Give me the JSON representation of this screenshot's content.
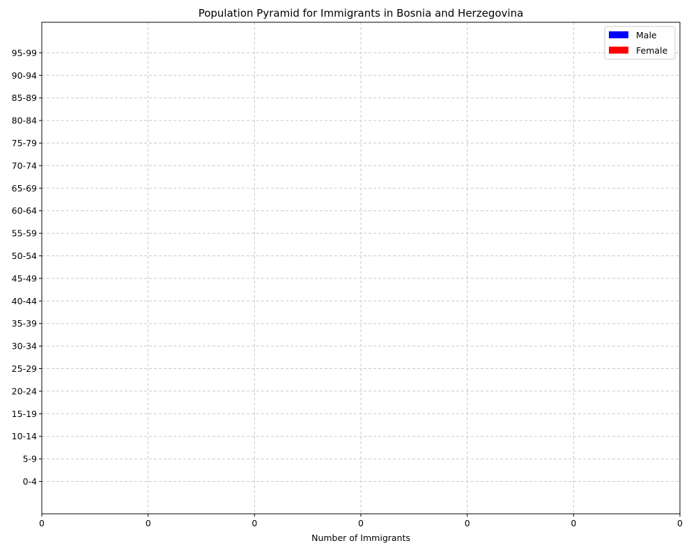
{
  "chart_data": {
    "type": "bar",
    "orientation": "horizontal",
    "title": "Population Pyramid for Immigrants in Bosnia and Herzegovina",
    "xlabel": "Number of Immigrants",
    "ylabel": "",
    "categories": [
      "0-4",
      "5-9",
      "10-14",
      "15-19",
      "20-24",
      "25-29",
      "30-34",
      "35-39",
      "40-44",
      "45-49",
      "50-54",
      "55-59",
      "60-64",
      "65-69",
      "70-74",
      "75-79",
      "80-84",
      "85-89",
      "90-94",
      "95-99"
    ],
    "series": [
      {
        "name": "Male",
        "color": "#0000ff",
        "values": [
          0,
          0,
          0,
          0,
          0,
          0,
          0,
          0,
          0,
          0,
          0,
          0,
          0,
          0,
          0,
          0,
          0,
          0,
          0,
          0
        ]
      },
      {
        "name": "Female",
        "color": "#ff0000",
        "values": [
          0,
          0,
          0,
          0,
          0,
          0,
          0,
          0,
          0,
          0,
          0,
          0,
          0,
          0,
          0,
          0,
          0,
          0,
          0,
          0
        ]
      }
    ],
    "x_tick_labels": [
      "0",
      "0",
      "0",
      "0",
      "0",
      "0",
      "0"
    ],
    "grid": true,
    "legend_position": "top-right"
  }
}
